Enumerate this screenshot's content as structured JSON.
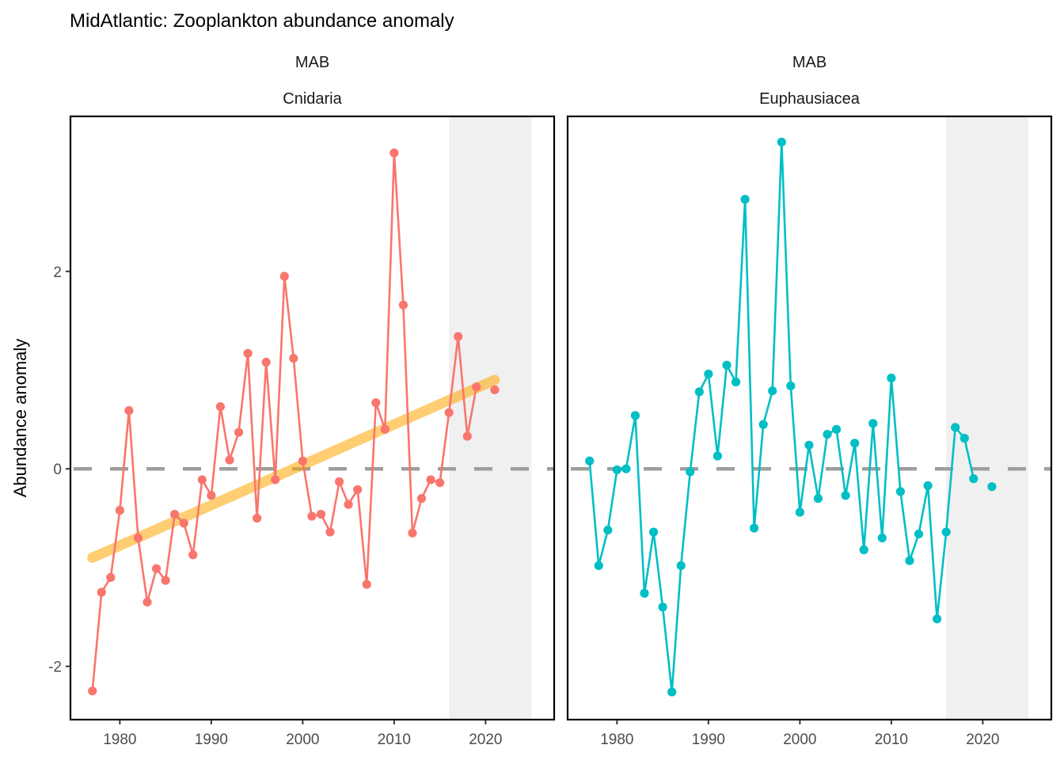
{
  "chart_data": {
    "type": "line",
    "title": "MidAtlantic: Zooplankton abundance anomaly",
    "ylabel": "Abundance anomaly",
    "xlabel": "",
    "xlim": [
      1974.6,
      2027.5
    ],
    "ylim": [
      -2.54,
      3.57
    ],
    "x_ticks": [
      1980,
      1990,
      2000,
      2010,
      2020
    ],
    "x_tick_labels": [
      "1980",
      "1990",
      "2000",
      "2010",
      "2020"
    ],
    "y_ticks": [
      -2,
      0,
      2
    ],
    "y_tick_labels": [
      "-2",
      "0",
      "2"
    ],
    "reference_line": {
      "y": 0,
      "style": "dashed",
      "color": "#9e9e9e"
    },
    "highlight_region": {
      "x": [
        2016,
        2025
      ],
      "color": "#f0f0f0"
    },
    "grid": false,
    "panels": [
      {
        "strip_labels": [
          "MAB",
          "Cnidaria"
        ],
        "color": "#F8766D",
        "x": [
          1977,
          1978,
          1979,
          1980,
          1981,
          1982,
          1983,
          1984,
          1985,
          1986,
          1987,
          1988,
          1989,
          1990,
          1991,
          1992,
          1993,
          1994,
          1995,
          1996,
          1997,
          1998,
          1999,
          2000,
          2001,
          2002,
          2003,
          2004,
          2005,
          2006,
          2007,
          2008,
          2009,
          2010,
          2011,
          2012,
          2013,
          2014,
          2015,
          2016,
          2017,
          2018,
          2019,
          2021
        ],
        "y": [
          -2.25,
          -1.25,
          -1.1,
          -0.42,
          0.59,
          -0.7,
          -1.35,
          -1.01,
          -1.13,
          -0.46,
          -0.55,
          -0.87,
          -0.11,
          -0.27,
          0.63,
          0.09,
          0.37,
          1.17,
          -0.5,
          1.08,
          -0.11,
          1.95,
          1.12,
          0.08,
          -0.48,
          -0.46,
          -0.64,
          -0.13,
          -0.36,
          -0.21,
          -1.17,
          0.67,
          0.4,
          3.2,
          1.66,
          -0.65,
          -0.3,
          -0.11,
          -0.14,
          0.57,
          1.34,
          0.33,
          0.83,
          0.8
        ],
        "line_segments": [
          [
            1977,
            2019
          ]
        ],
        "trend": {
          "x": [
            1977,
            2021
          ],
          "y": [
            -0.9,
            0.9
          ],
          "color": "#FFA500",
          "opacity": 0.55
        }
      },
      {
        "strip_labels": [
          "MAB",
          "Euphausiacea"
        ],
        "color": "#00BFC4",
        "x": [
          1977,
          1978,
          1979,
          1980,
          1981,
          1982,
          1983,
          1984,
          1985,
          1986,
          1987,
          1988,
          1989,
          1990,
          1991,
          1992,
          1993,
          1994,
          1995,
          1996,
          1997,
          1998,
          1999,
          2000,
          2001,
          2002,
          2003,
          2004,
          2005,
          2006,
          2007,
          2008,
          2009,
          2010,
          2011,
          2012,
          2013,
          2014,
          2015,
          2016,
          2017,
          2018,
          2019,
          2021
        ],
        "y": [
          0.08,
          -0.98,
          -0.62,
          -0.01,
          0.0,
          0.54,
          -1.26,
          -0.64,
          -1.4,
          -2.26,
          -0.98,
          -0.03,
          0.78,
          0.96,
          0.13,
          1.05,
          0.88,
          2.73,
          -0.6,
          0.45,
          0.79,
          3.31,
          0.84,
          -0.44,
          0.24,
          -0.3,
          0.35,
          0.4,
          -0.27,
          0.26,
          -0.82,
          0.46,
          -0.7,
          0.92,
          -0.23,
          -0.93,
          -0.66,
          -0.17,
          -1.52,
          -0.64,
          0.42,
          0.31,
          -0.1,
          -0.18
        ],
        "line_segments": [
          [
            1977,
            2019
          ]
        ],
        "trend": null
      }
    ]
  }
}
